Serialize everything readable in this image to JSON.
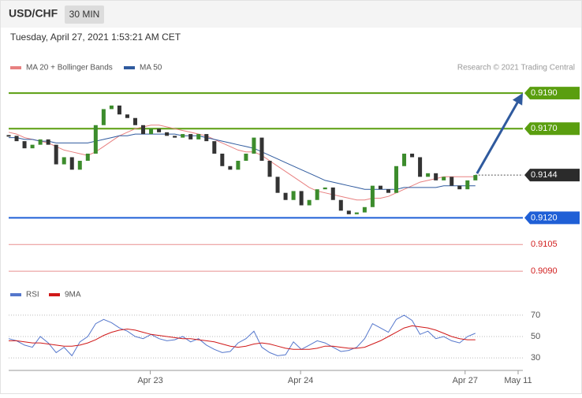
{
  "chart_data": {
    "type": "candlestick",
    "title": "USD/CHF",
    "timeframe": "30 MIN",
    "subtitle": "Tuesday, April 27, 2021 1:53:21 AM CET",
    "credit": "Research © 2021 Trading Central",
    "up_color": "#3c8c2c",
    "down_color": "#333333",
    "xlim": [
      0,
      65
    ],
    "xticks": [
      {
        "value": 17.9,
        "label": "Apr 23"
      },
      {
        "value": 36.9,
        "label": "Apr 24"
      },
      {
        "value": 57.7,
        "label": "Apr 27"
      },
      {
        "value": 64.4,
        "label": "May 11"
      }
    ],
    "ylim": [
      0.9083,
      0.9198
    ],
    "close": [
      0.9166,
      0.9163,
      0.9159,
      0.9161,
      0.9164,
      0.9161,
      0.915,
      0.9154,
      0.9147,
      0.9152,
      0.9156,
      0.9172,
      0.9181,
      0.9183,
      0.9178,
      0.9176,
      0.9172,
      0.9167,
      0.917,
      0.9168,
      0.9166,
      0.9165,
      0.9167,
      0.9164,
      0.9167,
      0.9163,
      0.9156,
      0.9149,
      0.9147,
      0.9152,
      0.9156,
      0.9165,
      0.9152,
      0.9143,
      0.9134,
      0.913,
      0.9135,
      0.9127,
      0.913,
      0.9136,
      0.9137,
      0.913,
      0.9124,
      0.9122,
      0.9123,
      0.9126,
      0.9138,
      0.9136,
      0.9134,
      0.9149,
      0.9156,
      0.9154,
      0.9143,
      0.9145,
      0.9141,
      0.9143,
      0.9138,
      0.9136,
      0.9141,
      0.9144
    ],
    "series": [
      {
        "name": "MA 20 + Bollinger Bands",
        "color": "#e88080",
        "values": [
          0.9168,
          0.9167,
          0.9165,
          0.9164,
          0.9163,
          0.9162,
          0.916,
          0.9158,
          0.9157,
          0.9156,
          0.9155,
          0.9157,
          0.916,
          0.9163,
          0.9166,
          0.9168,
          0.917,
          0.9171,
          0.9172,
          0.9172,
          0.9171,
          0.917,
          0.9169,
          0.9168,
          0.9167,
          0.9166,
          0.9164,
          0.9162,
          0.916,
          0.9158,
          0.9157,
          0.9157,
          0.9155,
          0.9152,
          0.9149,
          0.9146,
          0.9143,
          0.914,
          0.9137,
          0.9135,
          0.9134,
          0.9133,
          0.9132,
          0.9131,
          0.913,
          0.913,
          0.9131,
          0.9131,
          0.9132,
          0.9134,
          0.9136,
          0.9138,
          0.914,
          0.9141,
          0.9142,
          0.9143,
          0.9143,
          0.9143,
          0.9143,
          0.9143
        ]
      },
      {
        "name": "MA 50",
        "color": "#2f5a9e",
        "values": [
          0.9165,
          0.9165,
          0.9164,
          0.9164,
          0.9163,
          0.9163,
          0.9162,
          0.9162,
          0.9162,
          0.9162,
          0.9162,
          0.9163,
          0.9164,
          0.9165,
          0.9166,
          0.9166,
          0.9167,
          0.9167,
          0.9167,
          0.9167,
          0.9167,
          0.9167,
          0.9166,
          0.9166,
          0.9166,
          0.9165,
          0.9164,
          0.9163,
          0.9162,
          0.9161,
          0.916,
          0.9159,
          0.9157,
          0.9155,
          0.9153,
          0.9151,
          0.9149,
          0.9147,
          0.9145,
          0.9143,
          0.9141,
          0.914,
          0.9139,
          0.9138,
          0.9137,
          0.9136,
          0.9136,
          0.9136,
          0.9136,
          0.9136,
          0.9137,
          0.9137,
          0.9137,
          0.9137,
          0.9137,
          0.9138,
          0.9138,
          0.9138,
          0.9138,
          0.9138
        ]
      }
    ],
    "levels": [
      {
        "value": 0.919,
        "label": "0.9190",
        "color": "#5a9e0f",
        "style": "box"
      },
      {
        "value": 0.917,
        "label": "0.9170",
        "color": "#5a9e0f",
        "style": "box"
      },
      {
        "value": 0.9144,
        "label": "0.9144",
        "color": "#2b2b2b",
        "style": "current"
      },
      {
        "value": 0.912,
        "label": "0.9120",
        "color": "#1f5fd6",
        "style": "box"
      },
      {
        "value": 0.9105,
        "label": "0.9105",
        "color": "#d22020",
        "style": "text"
      },
      {
        "value": 0.909,
        "label": "0.9090",
        "color": "#d22020",
        "style": "text"
      }
    ],
    "rsi": {
      "type": "line",
      "ylim": [
        22,
        78
      ],
      "yticks": [
        30,
        50,
        70
      ],
      "series": [
        {
          "name": "RSI",
          "color": "#5577cc",
          "values": [
            48,
            46,
            42,
            40,
            50,
            44,
            35,
            40,
            32,
            45,
            50,
            62,
            66,
            63,
            58,
            55,
            50,
            48,
            52,
            48,
            46,
            47,
            50,
            45,
            48,
            42,
            38,
            35,
            36,
            44,
            48,
            55,
            40,
            35,
            32,
            33,
            45,
            38,
            42,
            46,
            44,
            40,
            36,
            37,
            40,
            48,
            62,
            58,
            54,
            66,
            70,
            65,
            52,
            55,
            48,
            50,
            46,
            44,
            50,
            53
          ]
        },
        {
          "name": "9MA",
          "color": "#d01818",
          "values": [
            46,
            46,
            45,
            44,
            44,
            43,
            42,
            41,
            41,
            42,
            44,
            47,
            51,
            54,
            56,
            57,
            56,
            54,
            52,
            51,
            50,
            49,
            48,
            48,
            47,
            46,
            45,
            43,
            41,
            40,
            41,
            43,
            44,
            43,
            41,
            39,
            38,
            38,
            38,
            39,
            41,
            41,
            40,
            39,
            39,
            40,
            43,
            46,
            50,
            54,
            58,
            60,
            59,
            58,
            56,
            53,
            50,
            48,
            47,
            47
          ]
        }
      ]
    }
  }
}
